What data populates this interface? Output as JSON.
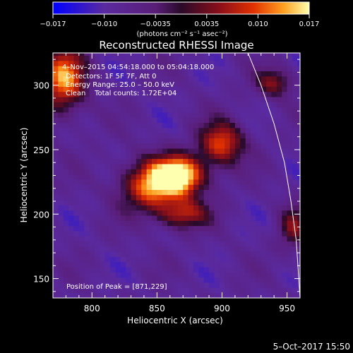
{
  "chart_data": {
    "type": "heatmap",
    "title": "Reconstructed RHESSI Image",
    "xlabel": "Heliocentric X (arcsec)",
    "ylabel": "Heliocentric Y (arcsec)",
    "xlim": [
      770,
      960
    ],
    "ylim": [
      135,
      325
    ],
    "xticks": [
      800,
      850,
      900,
      950
    ],
    "yticks": [
      150,
      200,
      250,
      300
    ],
    "colorbar": {
      "range": [
        -0.017,
        0.017
      ],
      "ticks": [
        "−0.017",
        "−0.010",
        "−0.0035",
        "0.0035",
        "0.010",
        "0.017"
      ],
      "unit_label": "(photons cm⁻² s⁻¹ asec⁻²)",
      "colors": [
        "#0000ff",
        "#5a2aa0",
        "#5a1e78",
        "#2a0a2a",
        "#8a0f1a",
        "#e03000",
        "#ffa020",
        "#ffffb0"
      ]
    },
    "annotations": [
      "4–Nov–2015 04:54:18.000 to 05:04:18.000",
      "Detectors: 1F 5F 7F, Att 0",
      "Energy Range: 25.0 – 50.0 keV",
      "Clean    Total counts: 1.72E+04",
      "Position of Peak = [871,229]"
    ],
    "peak": {
      "x": 871,
      "y": 229
    },
    "sources": [
      {
        "x": 868,
        "y": 230,
        "peak": 0.017,
        "sx": 14,
        "sy": 11
      },
      {
        "x": 845,
        "y": 222,
        "peak": 0.011,
        "sx": 16,
        "sy": 14
      },
      {
        "x": 900,
        "y": 255,
        "peak": 0.01,
        "sx": 12,
        "sy": 12
      },
      {
        "x": 870,
        "y": 200,
        "peak": 0.006,
        "sx": 14,
        "sy": 8
      },
      {
        "x": 778,
        "y": 305,
        "peak": 0.013,
        "sx": 12,
        "sy": 18
      },
      {
        "x": 940,
        "y": 302,
        "peak": 0.004,
        "sx": 10,
        "sy": 8
      },
      {
        "x": 955,
        "y": 190,
        "peak": 0.003,
        "sx": 8,
        "sy": 12
      }
    ],
    "limb_curve": [
      [
        920,
        325
      ],
      [
        930,
        300
      ],
      [
        940,
        270
      ],
      [
        948,
        240
      ],
      [
        953,
        210
      ],
      [
        957,
        180
      ],
      [
        959,
        150
      ],
      [
        960,
        135
      ]
    ]
  },
  "footer": {
    "date": "5–Oct–2017 15:50"
  }
}
